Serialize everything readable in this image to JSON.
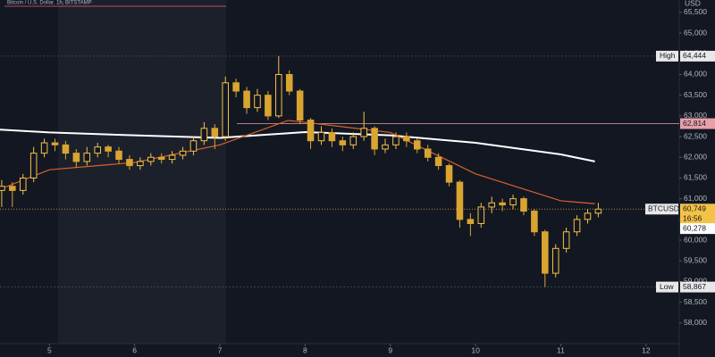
{
  "chart_data": {
    "type": "candlestick",
    "title": "Bitcoin / U.S. Dollar, 1h, BITSTAMP",
    "y_axis_label": "USD",
    "x": [
      4.44,
      4.565,
      4.69,
      4.815,
      4.94,
      5.065,
      5.19,
      5.315,
      5.44,
      5.565,
      5.69,
      5.815,
      5.94,
      6.065,
      6.19,
      6.315,
      6.44,
      6.565,
      6.69,
      6.815,
      6.94,
      7.065,
      7.19,
      7.315,
      7.44,
      7.565,
      7.69,
      7.815,
      7.94,
      8.065,
      8.19,
      8.315,
      8.44,
      8.565,
      8.69,
      8.815,
      8.94,
      9.065,
      9.19,
      9.315,
      9.44,
      9.565,
      9.69,
      9.815,
      9.94,
      10.065,
      10.19,
      10.315,
      10.44,
      10.565,
      10.69,
      10.815,
      10.94,
      11.065,
      11.19,
      11.315,
      11.44
    ],
    "open": [
      61200,
      61300,
      61200,
      61500,
      62100,
      62350,
      62300,
      62100,
      61900,
      62100,
      62250,
      62150,
      61950,
      61800,
      61900,
      62000,
      61950,
      62050,
      62150,
      62400,
      62700,
      62500,
      63800,
      63600,
      63200,
      63500,
      63000,
      64000,
      63600,
      62900,
      62400,
      62600,
      62400,
      62300,
      62500,
      62700,
      62200,
      62300,
      62500,
      62400,
      62200,
      62000,
      61800,
      61400,
      60500,
      60400,
      60800,
      60900,
      60850,
      61000,
      60700,
      60200,
      59200,
      59800,
      60200,
      60500,
      60650
    ],
    "high": [
      61450,
      61400,
      61600,
      62250,
      62450,
      62450,
      62400,
      62200,
      62250,
      62350,
      62300,
      62250,
      62050,
      62000,
      62100,
      62100,
      62150,
      62250,
      62500,
      62850,
      62800,
      63950,
      63900,
      63700,
      63650,
      63600,
      64444,
      64100,
      63650,
      62950,
      62750,
      62700,
      62500,
      62600,
      63100,
      62750,
      62450,
      62600,
      62600,
      62450,
      62300,
      62100,
      61850,
      61450,
      60650,
      60900,
      61050,
      61000,
      61100,
      61050,
      60750,
      60250,
      59900,
      60300,
      60600,
      60750,
      60900
    ],
    "low": [
      60800,
      60800,
      61100,
      61400,
      62000,
      62150,
      61950,
      61750,
      61800,
      62000,
      62000,
      61850,
      61700,
      61700,
      61800,
      61850,
      61850,
      61950,
      62050,
      62300,
      62200,
      62400,
      63450,
      63050,
      63100,
      62900,
      62950,
      63500,
      62800,
      62200,
      62300,
      62250,
      62150,
      62200,
      62400,
      62050,
      62100,
      62200,
      62250,
      62100,
      61900,
      61700,
      61300,
      60300,
      60100,
      60300,
      60650,
      60700,
      60750,
      60600,
      60100,
      58867,
      59100,
      59700,
      60100,
      60400,
      60550
    ],
    "close": [
      61300,
      61200,
      61500,
      62100,
      62350,
      62300,
      62100,
      61900,
      62100,
      62250,
      62150,
      61950,
      61800,
      61900,
      62000,
      61950,
      62050,
      62150,
      62400,
      62700,
      62500,
      63800,
      63600,
      63200,
      63500,
      63000,
      64000,
      63600,
      62900,
      62400,
      62600,
      62400,
      62300,
      62500,
      62700,
      62200,
      62300,
      62500,
      62400,
      62200,
      62000,
      61800,
      61400,
      60500,
      60400,
      60800,
      60900,
      60850,
      61000,
      60700,
      60200,
      59200,
      59800,
      60200,
      60500,
      60650,
      60749
    ],
    "up_color": "#f4c247",
    "down_color": "#d9a531",
    "moving_averages": [
      {
        "color": "#ffffff",
        "x": [
          4.42,
          5,
          6,
          7,
          8,
          9,
          10,
          11,
          11.4
        ],
        "values": [
          62670,
          62600,
          62530,
          62470,
          62610,
          62530,
          62350,
          62070,
          61900
        ]
      },
      {
        "color": "#d9622b",
        "x": [
          4.42,
          5,
          6,
          7,
          7.8,
          8,
          9,
          10,
          11,
          11.4
        ],
        "values": [
          61230,
          61700,
          61875,
          62300,
          62890,
          62845,
          62600,
          61600,
          60950,
          60880
        ]
      }
    ],
    "high_level": {
      "label": "High",
      "value": 64444,
      "value_label": "64,444"
    },
    "low_level": {
      "label": "Low",
      "value": 58867,
      "value_label": "58,867"
    },
    "drawn_level": {
      "value": 62814,
      "value_label": "62,814",
      "color": "#e7a0a8"
    },
    "last_price": {
      "label": "BTCUSD",
      "value": 60749,
      "value_label": "60,749",
      "countdown": "16:56"
    },
    "marker_price": {
      "value": 60278,
      "value_label": "60,278"
    },
    "xlim": [
      4.42,
      12.39
    ],
    "ylim": [
      57500,
      65800
    ],
    "xticks": [
      5,
      6,
      7,
      8,
      9,
      10,
      11,
      12
    ],
    "yticks": [
      {
        "value": 58000,
        "label": "58,000"
      },
      {
        "value": 58500,
        "label": "58,500"
      },
      {
        "value": 59000,
        "label": "59,000"
      },
      {
        "value": 59500,
        "label": "59,500"
      },
      {
        "value": 60000,
        "label": "60,000"
      },
      {
        "value": 60500,
        "label": "60,500"
      },
      {
        "value": 61000,
        "label": "61,000"
      },
      {
        "value": 61500,
        "label": "61,500"
      },
      {
        "value": 62000,
        "label": "62,000"
      },
      {
        "value": 62500,
        "label": "62,500"
      },
      {
        "value": 63000,
        "label": "63,000"
      },
      {
        "value": 63500,
        "label": "63,500"
      },
      {
        "value": 64000,
        "label": "64,000"
      },
      {
        "value": 64500,
        "label": "64,500"
      },
      {
        "value": 65000,
        "label": "65,000"
      },
      {
        "value": 65500,
        "label": "65,500"
      }
    ]
  }
}
